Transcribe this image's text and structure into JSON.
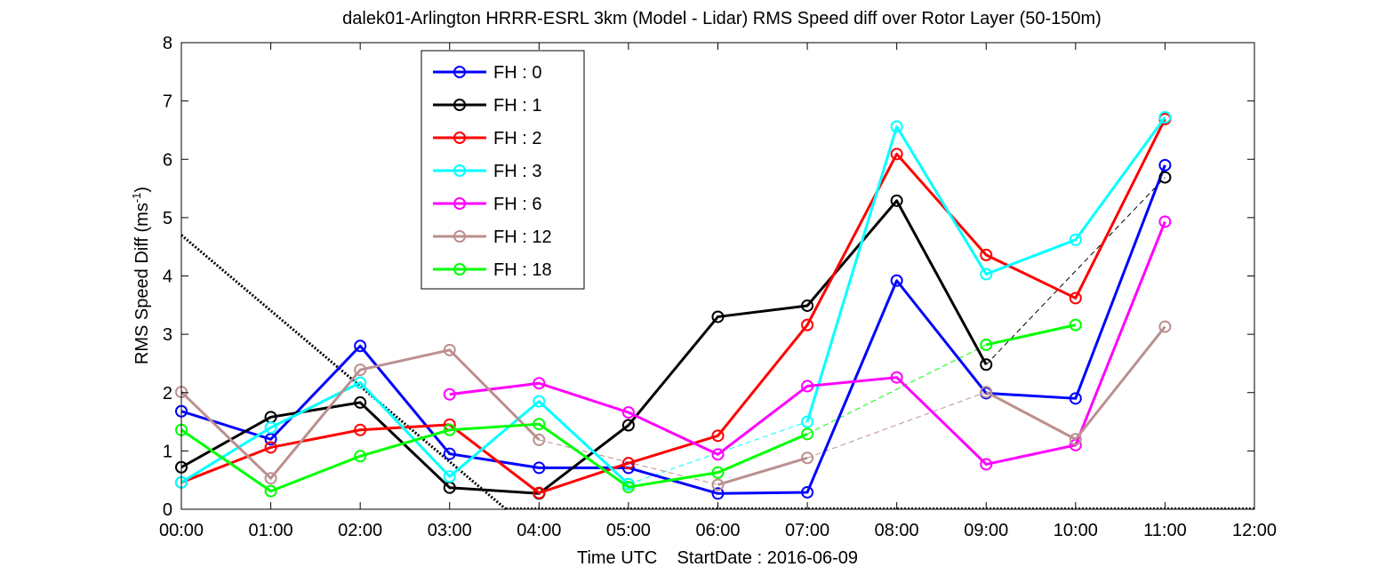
{
  "chart_data": {
    "type": "line",
    "title": "dalek01-Arlington HRRR-ESRL 3km (Model - Lidar) RMS Speed diff over Rotor Layer (50-150m)",
    "xlabel": "Time UTC    StartDate : 2016-06-09",
    "ylabel_main": "RMS Speed Diff (ms",
    "ylabel_sup": "-1",
    "ylabel_close": ")",
    "x_ticks": [
      "00:00",
      "01:00",
      "02:00",
      "03:00",
      "04:00",
      "05:00",
      "06:00",
      "07:00",
      "08:00",
      "09:00",
      "10:00",
      "11:00",
      "12:00"
    ],
    "y_ticks": [
      "0",
      "1",
      "2",
      "3",
      "4",
      "5",
      "6",
      "7",
      "8"
    ],
    "xlim": [
      0,
      12
    ],
    "ylim": [
      0,
      8
    ],
    "grid": false,
    "legend_position": "top-left",
    "series": [
      {
        "name": "FH : 0",
        "color": "#0000ff",
        "x": [
          0,
          1,
          2,
          3,
          4,
          5,
          6,
          7,
          8,
          9,
          10,
          11
        ],
        "y": [
          1.68,
          1.2,
          2.8,
          0.95,
          0.71,
          0.71,
          0.27,
          0.29,
          3.92,
          1.99,
          1.9,
          5.9
        ]
      },
      {
        "name": "FH : 1",
        "color": "#000000",
        "x": [
          0,
          1,
          2,
          3,
          4,
          5,
          6,
          7,
          8,
          9,
          11
        ],
        "y": [
          0.72,
          1.58,
          1.83,
          0.37,
          0.27,
          1.44,
          3.3,
          3.49,
          5.29,
          2.48,
          5.69
        ]
      },
      {
        "name": "FH : 2",
        "color": "#ff0000",
        "x": [
          0,
          1,
          2,
          3,
          4,
          5,
          6,
          7,
          8,
          9,
          10,
          11
        ],
        "y": [
          0.46,
          1.06,
          1.36,
          1.45,
          0.28,
          0.79,
          1.26,
          3.16,
          6.09,
          4.36,
          3.62,
          6.69
        ]
      },
      {
        "name": "FH : 3",
        "color": "#00ffff",
        "x": [
          0,
          1,
          2,
          3,
          4,
          5,
          7,
          8,
          9,
          10,
          11
        ],
        "y": [
          0.46,
          1.4,
          2.17,
          0.56,
          1.85,
          0.43,
          1.5,
          6.56,
          4.03,
          4.62,
          6.72
        ]
      },
      {
        "name": "FH : 6",
        "color": "#ff00ff",
        "x": [
          3,
          4,
          5,
          6,
          7,
          8,
          9,
          10,
          11
        ],
        "y": [
          1.97,
          2.16,
          1.66,
          0.94,
          2.11,
          2.26,
          0.77,
          1.1,
          4.93
        ]
      },
      {
        "name": "FH : 12",
        "color": "#bc8f8f",
        "x": [
          0,
          1,
          2,
          3,
          4,
          6,
          7,
          9,
          10,
          11
        ],
        "y": [
          2.01,
          0.53,
          2.39,
          2.73,
          1.19,
          0.42,
          0.88,
          2.01,
          1.2,
          3.13
        ]
      },
      {
        "name": "FH : 18",
        "color": "#00ff00",
        "x": [
          0,
          1,
          2,
          3,
          4,
          5,
          6,
          7,
          9,
          10
        ],
        "y": [
          1.36,
          0.31,
          0.91,
          1.36,
          1.46,
          0.38,
          0.63,
          1.29,
          2.82,
          3.16
        ]
      }
    ]
  }
}
